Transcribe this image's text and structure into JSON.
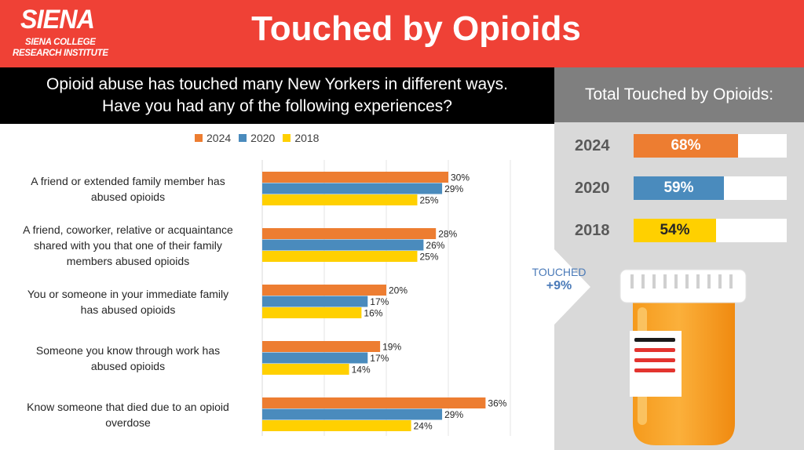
{
  "header": {
    "logo_main": "SIENA",
    "logo_sub1": "SIENA COLLEGE",
    "logo_sub2": "RESEARCH INSTITUTE",
    "title": "Touched by Opioids"
  },
  "question": {
    "line1": "Opioid abuse has touched many New Yorkers in different ways.",
    "line2": "Have you had any of the following experiences?"
  },
  "panel": {
    "heading": "Total Touched by Opioids:",
    "totals": [
      {
        "year": "2024",
        "value": 68,
        "label": "68%",
        "color": "#ed7d31",
        "text_color": "#ffffff"
      },
      {
        "year": "2020",
        "value": 59,
        "label": "59%",
        "color": "#4a8bbd",
        "text_color": "#ffffff"
      },
      {
        "year": "2018",
        "value": 54,
        "label": "54%",
        "color": "#ffd000",
        "text_color": "#262626"
      }
    ],
    "touched_label": "TOUCHED",
    "touched_delta": "+9%"
  },
  "chart_data": {
    "type": "bar",
    "orientation": "horizontal",
    "categories": [
      "A friend or extended family member has abused opioids",
      "A friend, coworker, relative or acquaintance shared with you that one of their family members abused opioids",
      "You or someone in your immediate family has abused opioids",
      "Someone you know through work has abused opioids",
      "Know someone that died due to an opioid overdose"
    ],
    "category_lines": [
      [
        "A friend or extended family member has",
        "abused opioids"
      ],
      [
        "A friend, coworker, relative or acquaintance",
        "shared with you that one of their family",
        "members abused opioids"
      ],
      [
        "You or someone in your immediate family",
        "has abused opioids"
      ],
      [
        "Someone you know through work has",
        "abused opioids"
      ],
      [
        "Know someone that died due to an opioid",
        "overdose"
      ]
    ],
    "series": [
      {
        "name": "2024",
        "color": "#ed7d31",
        "values": [
          30,
          28,
          20,
          19,
          36
        ]
      },
      {
        "name": "2020",
        "color": "#4a8bbd",
        "values": [
          29,
          26,
          17,
          17,
          29
        ]
      },
      {
        "name": "2018",
        "color": "#ffd000",
        "values": [
          25,
          25,
          16,
          14,
          24
        ]
      }
    ],
    "value_suffix": "%",
    "xlim": [
      0,
      40
    ],
    "grid": true,
    "legend_position": "top"
  }
}
